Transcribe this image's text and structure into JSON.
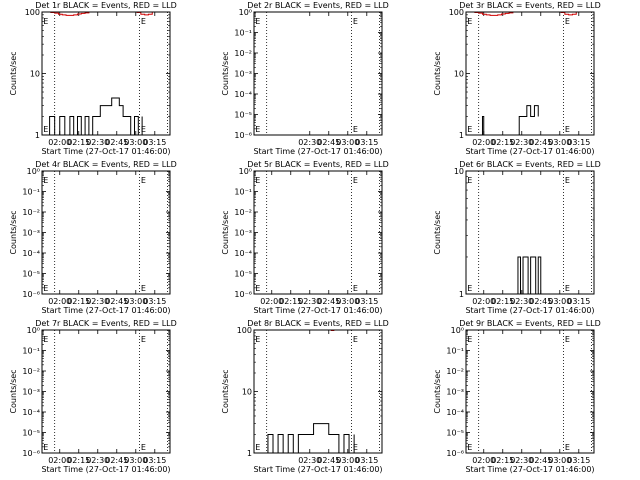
{
  "chart_data": [
    {
      "type": "line",
      "title": "Det 1r BLACK = Events, RED = LLD",
      "xlabel": "Start Time (27-Oct-17 01:46:00)",
      "ylabel": "Counts/sec",
      "scale": "log",
      "ylim": [
        1,
        100
      ],
      "yticks": [
        {
          "v": 1,
          "label": "1"
        },
        {
          "v": 10,
          "label": "10"
        },
        {
          "v": 100,
          "label": "100"
        }
      ],
      "xlim": [
        106,
        207
      ],
      "xticks": [
        {
          "v": 120,
          "label": "02:00"
        },
        {
          "v": 135,
          "label": "02:15"
        },
        {
          "v": 150,
          "label": "02:30"
        },
        {
          "v": 165,
          "label": "02:45"
        },
        {
          "v": 180,
          "label": "03:00"
        },
        {
          "v": 195,
          "label": "03:15"
        }
      ],
      "dotted_lines": [
        116,
        183,
        205
      ],
      "markers": [
        {
          "x": 107,
          "label": "E"
        },
        {
          "x": 184,
          "label": "E"
        }
      ],
      "series": [
        {
          "role": "events",
          "color": "#000000",
          "x": [
            108,
            112,
            116,
            120,
            124,
            128,
            131,
            134,
            137,
            140,
            143,
            146,
            149,
            152,
            155,
            158,
            161,
            164,
            167,
            170,
            173,
            176,
            179,
            182,
            185
          ],
          "y": [
            1,
            2,
            1,
            2,
            1,
            2,
            1,
            2,
            1,
            2,
            1,
            2,
            2,
            3,
            3,
            3,
            4,
            4,
            3,
            2,
            2,
            1,
            2,
            1,
            2
          ]
        },
        {
          "role": "lld",
          "color": "#d00000",
          "x": [
            107,
            110,
            113,
            116,
            119,
            122,
            125,
            128,
            131,
            134,
            137,
            140,
            143,
            146,
            178,
            181,
            184,
            187,
            190,
            193
          ],
          "y": [
            100,
            100,
            98,
            96,
            92,
            90,
            88,
            88,
            90,
            93,
            95,
            97,
            100,
            100,
            100,
            98,
            92,
            90,
            92,
            100
          ]
        }
      ]
    },
    {
      "type": "line",
      "title": "Det 2r BLACK = Events, RED = LLD",
      "xlabel": "Start Time (27-Oct-17 01:46:00)",
      "ylabel": "Counts/sec",
      "scale": "log",
      "ylim": [
        1e-06,
        1
      ],
      "yticks": [
        {
          "v": 1,
          "label": "10⁰"
        },
        {
          "v": 0.1,
          "label": "10⁻¹"
        },
        {
          "v": 0.01,
          "label": "10⁻²"
        },
        {
          "v": 0.001,
          "label": "10⁻³"
        },
        {
          "v": 0.0001,
          "label": "10⁻⁴"
        },
        {
          "v": 1e-05,
          "label": "10⁻⁵"
        },
        {
          "v": 1e-06,
          "label": "10⁻⁶"
        }
      ],
      "xlim": [
        106,
        207
      ],
      "xticks": [
        {
          "v": 150,
          "label": "02:30"
        },
        {
          "v": 165,
          "label": "02:45"
        },
        {
          "v": 180,
          "label": "03:00"
        },
        {
          "v": 195,
          "label": "03:15"
        }
      ],
      "dotted_lines": [
        116,
        183,
        205
      ],
      "markers": [
        {
          "x": 107,
          "label": "E"
        },
        {
          "x": 184,
          "label": "E"
        }
      ],
      "series": []
    },
    {
      "type": "line",
      "title": "Det 3r BLACK = Events, RED = LLD",
      "xlabel": "Start Time (27-Oct-17 01:46:00)",
      "ylabel": "Counts/sec",
      "scale": "log",
      "ylim": [
        1,
        100
      ],
      "yticks": [
        {
          "v": 1,
          "label": "1"
        },
        {
          "v": 10,
          "label": "10"
        },
        {
          "v": 100,
          "label": "100"
        }
      ],
      "xlim": [
        106,
        207
      ],
      "xticks": [
        {
          "v": 120,
          "label": "02:00"
        },
        {
          "v": 135,
          "label": "02:15"
        },
        {
          "v": 150,
          "label": "02:30"
        },
        {
          "v": 165,
          "label": "02:45"
        },
        {
          "v": 180,
          "label": "03:00"
        },
        {
          "v": 195,
          "label": "03:15"
        }
      ],
      "dotted_lines": [
        116,
        183,
        205
      ],
      "markers": [
        {
          "x": 107,
          "label": "E"
        },
        {
          "x": 184,
          "label": "E"
        }
      ],
      "series": [
        {
          "role": "events",
          "color": "#000000",
          "x": [
            118,
            119,
            120,
            145,
            148,
            151,
            154,
            157,
            160,
            163
          ],
          "y": [
            1,
            2,
            1,
            1,
            2,
            2,
            3,
            2,
            3,
            2
          ]
        },
        {
          "role": "lld",
          "color": "#d00000",
          "x": [
            107,
            110,
            113,
            116,
            119,
            122,
            125,
            128,
            131,
            134,
            137,
            140,
            143,
            146,
            178,
            181,
            184,
            187,
            190,
            193
          ],
          "y": [
            100,
            100,
            98,
            96,
            92,
            90,
            88,
            88,
            90,
            93,
            95,
            97,
            100,
            100,
            100,
            98,
            92,
            90,
            92,
            100
          ]
        }
      ]
    },
    {
      "type": "line",
      "title": "Det 4r BLACK = Events, RED = LLD",
      "xlabel": "Start Time (27-Oct-17 01:46:00)",
      "ylabel": "Counts/sec",
      "scale": "log",
      "ylim": [
        1e-06,
        1
      ],
      "yticks": [
        {
          "v": 1,
          "label": "10⁰"
        },
        {
          "v": 0.1,
          "label": "10⁻¹"
        },
        {
          "v": 0.01,
          "label": "10⁻²"
        },
        {
          "v": 0.001,
          "label": "10⁻³"
        },
        {
          "v": 0.0001,
          "label": "10⁻⁴"
        },
        {
          "v": 1e-05,
          "label": "10⁻⁵"
        },
        {
          "v": 1e-06,
          "label": "10⁻⁶"
        }
      ],
      "xlim": [
        106,
        207
      ],
      "xticks": [
        {
          "v": 120,
          "label": "02:00"
        },
        {
          "v": 135,
          "label": "02:15"
        },
        {
          "v": 150,
          "label": "02:30"
        },
        {
          "v": 165,
          "label": "02:45"
        },
        {
          "v": 180,
          "label": "03:00"
        },
        {
          "v": 195,
          "label": "03:15"
        }
      ],
      "dotted_lines": [
        116,
        183,
        205
      ],
      "markers": [
        {
          "x": 107,
          "label": "E"
        },
        {
          "x": 184,
          "label": "E"
        }
      ],
      "series": []
    },
    {
      "type": "line",
      "title": "Det 5r BLACK = Events, RED = LLD",
      "xlabel": "Start Time (27-Oct-17 01:46:00)",
      "ylabel": "Counts/sec",
      "scale": "log",
      "ylim": [
        1e-06,
        1
      ],
      "yticks": [
        {
          "v": 1,
          "label": "10⁰"
        },
        {
          "v": 0.1,
          "label": "10⁻¹"
        },
        {
          "v": 0.01,
          "label": "10⁻²"
        },
        {
          "v": 0.001,
          "label": "10⁻³"
        },
        {
          "v": 0.0001,
          "label": "10⁻⁴"
        },
        {
          "v": 1e-05,
          "label": "10⁻⁵"
        },
        {
          "v": 1e-06,
          "label": "10⁻⁶"
        }
      ],
      "xlim": [
        106,
        207
      ],
      "xticks": [
        {
          "v": 120,
          "label": "02:00"
        },
        {
          "v": 135,
          "label": "02:15"
        },
        {
          "v": 150,
          "label": "02:30"
        },
        {
          "v": 165,
          "label": "02:45"
        },
        {
          "v": 180,
          "label": "03:00"
        },
        {
          "v": 195,
          "label": "03:15"
        }
      ],
      "dotted_lines": [
        116,
        183,
        205
      ],
      "markers": [
        {
          "x": 107,
          "label": "E"
        },
        {
          "x": 184,
          "label": "E"
        }
      ],
      "series": []
    },
    {
      "type": "line",
      "title": "Det 6r BLACK = Events, RED = LLD",
      "xlabel": "Start Time (27-Oct-17 01:46:00)",
      "ylabel": "Counts/sec",
      "scale": "log",
      "ylim": [
        1,
        10
      ],
      "yticks": [
        {
          "v": 1,
          "label": "1"
        },
        {
          "v": 10,
          "label": "10"
        }
      ],
      "xlim": [
        106,
        207
      ],
      "xticks": [
        {
          "v": 120,
          "label": "02:00"
        },
        {
          "v": 135,
          "label": "02:15"
        },
        {
          "v": 150,
          "label": "02:30"
        },
        {
          "v": 165,
          "label": "02:45"
        },
        {
          "v": 180,
          "label": "03:00"
        },
        {
          "v": 195,
          "label": "03:15"
        }
      ],
      "dotted_lines": [
        116,
        183,
        205
      ],
      "markers": [
        {
          "x": 107,
          "label": "E"
        },
        {
          "x": 184,
          "label": "E"
        }
      ],
      "series": [
        {
          "role": "events",
          "color": "#000000",
          "x": [
            145,
            147,
            149,
            151,
            153,
            155,
            157,
            159,
            161,
            163,
            165
          ],
          "y": [
            1,
            2,
            1,
            2,
            2,
            1,
            2,
            2,
            1,
            2,
            1
          ]
        }
      ]
    },
    {
      "type": "line",
      "title": "Det 7r BLACK = Events, RED = LLD",
      "xlabel": "Start Time (27-Oct-17 01:46:00)",
      "ylabel": "Counts/sec",
      "scale": "log",
      "ylim": [
        1e-06,
        1
      ],
      "yticks": [
        {
          "v": 1,
          "label": "10⁰"
        },
        {
          "v": 0.1,
          "label": "10⁻¹"
        },
        {
          "v": 0.01,
          "label": "10⁻²"
        },
        {
          "v": 0.001,
          "label": "10⁻³"
        },
        {
          "v": 0.0001,
          "label": "10⁻⁴"
        },
        {
          "v": 1e-05,
          "label": "10⁻⁵"
        },
        {
          "v": 1e-06,
          "label": "10⁻⁶"
        }
      ],
      "xlim": [
        106,
        207
      ],
      "xticks": [
        {
          "v": 120,
          "label": "02:00"
        },
        {
          "v": 135,
          "label": "02:15"
        },
        {
          "v": 150,
          "label": "02:30"
        },
        {
          "v": 165,
          "label": "02:45"
        },
        {
          "v": 180,
          "label": "03:00"
        },
        {
          "v": 195,
          "label": "03:15"
        }
      ],
      "dotted_lines": [
        116,
        183,
        205
      ],
      "markers": [
        {
          "x": 107,
          "label": "E"
        },
        {
          "x": 184,
          "label": "E"
        }
      ],
      "series": []
    },
    {
      "type": "line",
      "title": "Det 8r BLACK = Events, RED = LLD",
      "xlabel": "Start Time (27-Oct-17 01:46:00)",
      "ylabel": "Counts/sec",
      "scale": "log",
      "ylim": [
        1,
        100
      ],
      "yticks": [
        {
          "v": 1,
          "label": "1"
        },
        {
          "v": 10,
          "label": "10"
        },
        {
          "v": 100,
          "label": "100"
        }
      ],
      "xlim": [
        106,
        207
      ],
      "xticks": [
        {
          "v": 150,
          "label": "02:30"
        },
        {
          "v": 165,
          "label": "02:45"
        },
        {
          "v": 180,
          "label": "03:00"
        },
        {
          "v": 195,
          "label": "03:15"
        }
      ],
      "dotted_lines": [
        116,
        183,
        205
      ],
      "markers": [
        {
          "x": 107,
          "label": "E"
        },
        {
          "x": 184,
          "label": "E"
        }
      ],
      "series": [
        {
          "role": "events",
          "color": "#000000",
          "x": [
            113,
            117,
            121,
            125,
            129,
            133,
            137,
            141,
            145,
            149,
            153,
            157,
            161,
            165,
            169,
            173,
            177,
            181,
            185
          ],
          "y": [
            1,
            2,
            1,
            2,
            1,
            2,
            1,
            2,
            2,
            2,
            3,
            3,
            3,
            2,
            2,
            1,
            2,
            1,
            2
          ]
        },
        {
          "role": "lld",
          "color": "#d00000",
          "x": [
            165,
            167,
            169
          ],
          "y": [
            100,
            98,
            100
          ]
        }
      ]
    },
    {
      "type": "line",
      "title": "Det 9r BLACK = Events, RED = LLD",
      "xlabel": "Start Time (27-Oct-17 01:46:00)",
      "ylabel": "Counts/sec",
      "scale": "log",
      "ylim": [
        1e-06,
        1
      ],
      "yticks": [
        {
          "v": 1,
          "label": "10⁰"
        },
        {
          "v": 0.1,
          "label": "10⁻¹"
        },
        {
          "v": 0.01,
          "label": "10⁻²"
        },
        {
          "v": 0.001,
          "label": "10⁻³"
        },
        {
          "v": 0.0001,
          "label": "10⁻⁴"
        },
        {
          "v": 1e-05,
          "label": "10⁻⁵"
        },
        {
          "v": 1e-06,
          "label": "10⁻⁶"
        }
      ],
      "xlim": [
        106,
        207
      ],
      "xticks": [
        {
          "v": 120,
          "label": "02:00"
        },
        {
          "v": 135,
          "label": "02:15"
        },
        {
          "v": 150,
          "label": "02:30"
        },
        {
          "v": 165,
          "label": "02:45"
        },
        {
          "v": 180,
          "label": "03:00"
        },
        {
          "v": 195,
          "label": "03:15"
        }
      ],
      "dotted_lines": [
        116,
        183,
        205
      ],
      "markers": [
        {
          "x": 107,
          "label": "E"
        },
        {
          "x": 184,
          "label": "E"
        }
      ],
      "series": []
    }
  ]
}
